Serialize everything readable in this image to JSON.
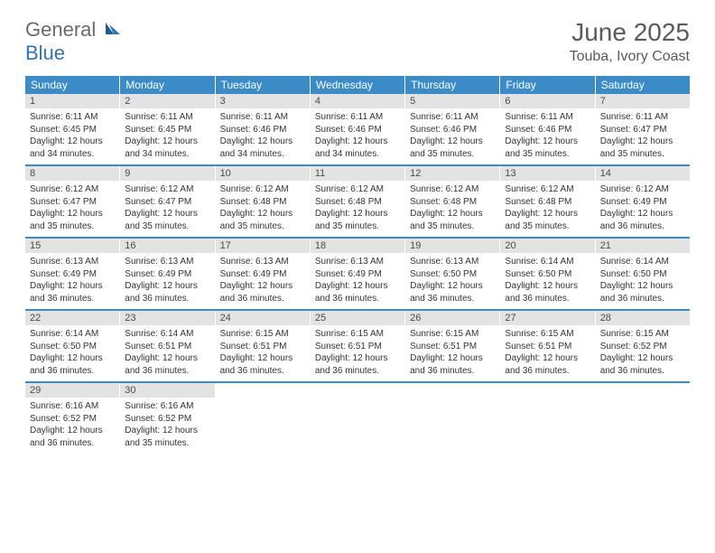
{
  "logo": {
    "general": "General",
    "blue": "Blue"
  },
  "title": "June 2025",
  "location": "Touba, Ivory Coast",
  "day_names": [
    "Sunday",
    "Monday",
    "Tuesday",
    "Wednesday",
    "Thursday",
    "Friday",
    "Saturday"
  ],
  "colors": {
    "header_bg": "#3b8bc9",
    "header_text": "#ffffff",
    "daynum_bg": "#e3e3e3",
    "logo_gray": "#6a6a6a",
    "logo_blue": "#2e75b6",
    "border": "#3b8bc9"
  },
  "weeks": [
    [
      {
        "n": "1",
        "sr": "Sunrise: 6:11 AM",
        "ss": "Sunset: 6:45 PM",
        "d1": "Daylight: 12 hours",
        "d2": "and 34 minutes."
      },
      {
        "n": "2",
        "sr": "Sunrise: 6:11 AM",
        "ss": "Sunset: 6:45 PM",
        "d1": "Daylight: 12 hours",
        "d2": "and 34 minutes."
      },
      {
        "n": "3",
        "sr": "Sunrise: 6:11 AM",
        "ss": "Sunset: 6:46 PM",
        "d1": "Daylight: 12 hours",
        "d2": "and 34 minutes."
      },
      {
        "n": "4",
        "sr": "Sunrise: 6:11 AM",
        "ss": "Sunset: 6:46 PM",
        "d1": "Daylight: 12 hours",
        "d2": "and 34 minutes."
      },
      {
        "n": "5",
        "sr": "Sunrise: 6:11 AM",
        "ss": "Sunset: 6:46 PM",
        "d1": "Daylight: 12 hours",
        "d2": "and 35 minutes."
      },
      {
        "n": "6",
        "sr": "Sunrise: 6:11 AM",
        "ss": "Sunset: 6:46 PM",
        "d1": "Daylight: 12 hours",
        "d2": "and 35 minutes."
      },
      {
        "n": "7",
        "sr": "Sunrise: 6:11 AM",
        "ss": "Sunset: 6:47 PM",
        "d1": "Daylight: 12 hours",
        "d2": "and 35 minutes."
      }
    ],
    [
      {
        "n": "8",
        "sr": "Sunrise: 6:12 AM",
        "ss": "Sunset: 6:47 PM",
        "d1": "Daylight: 12 hours",
        "d2": "and 35 minutes."
      },
      {
        "n": "9",
        "sr": "Sunrise: 6:12 AM",
        "ss": "Sunset: 6:47 PM",
        "d1": "Daylight: 12 hours",
        "d2": "and 35 minutes."
      },
      {
        "n": "10",
        "sr": "Sunrise: 6:12 AM",
        "ss": "Sunset: 6:48 PM",
        "d1": "Daylight: 12 hours",
        "d2": "and 35 minutes."
      },
      {
        "n": "11",
        "sr": "Sunrise: 6:12 AM",
        "ss": "Sunset: 6:48 PM",
        "d1": "Daylight: 12 hours",
        "d2": "and 35 minutes."
      },
      {
        "n": "12",
        "sr": "Sunrise: 6:12 AM",
        "ss": "Sunset: 6:48 PM",
        "d1": "Daylight: 12 hours",
        "d2": "and 35 minutes."
      },
      {
        "n": "13",
        "sr": "Sunrise: 6:12 AM",
        "ss": "Sunset: 6:48 PM",
        "d1": "Daylight: 12 hours",
        "d2": "and 35 minutes."
      },
      {
        "n": "14",
        "sr": "Sunrise: 6:12 AM",
        "ss": "Sunset: 6:49 PM",
        "d1": "Daylight: 12 hours",
        "d2": "and 36 minutes."
      }
    ],
    [
      {
        "n": "15",
        "sr": "Sunrise: 6:13 AM",
        "ss": "Sunset: 6:49 PM",
        "d1": "Daylight: 12 hours",
        "d2": "and 36 minutes."
      },
      {
        "n": "16",
        "sr": "Sunrise: 6:13 AM",
        "ss": "Sunset: 6:49 PM",
        "d1": "Daylight: 12 hours",
        "d2": "and 36 minutes."
      },
      {
        "n": "17",
        "sr": "Sunrise: 6:13 AM",
        "ss": "Sunset: 6:49 PM",
        "d1": "Daylight: 12 hours",
        "d2": "and 36 minutes."
      },
      {
        "n": "18",
        "sr": "Sunrise: 6:13 AM",
        "ss": "Sunset: 6:49 PM",
        "d1": "Daylight: 12 hours",
        "d2": "and 36 minutes."
      },
      {
        "n": "19",
        "sr": "Sunrise: 6:13 AM",
        "ss": "Sunset: 6:50 PM",
        "d1": "Daylight: 12 hours",
        "d2": "and 36 minutes."
      },
      {
        "n": "20",
        "sr": "Sunrise: 6:14 AM",
        "ss": "Sunset: 6:50 PM",
        "d1": "Daylight: 12 hours",
        "d2": "and 36 minutes."
      },
      {
        "n": "21",
        "sr": "Sunrise: 6:14 AM",
        "ss": "Sunset: 6:50 PM",
        "d1": "Daylight: 12 hours",
        "d2": "and 36 minutes."
      }
    ],
    [
      {
        "n": "22",
        "sr": "Sunrise: 6:14 AM",
        "ss": "Sunset: 6:50 PM",
        "d1": "Daylight: 12 hours",
        "d2": "and 36 minutes."
      },
      {
        "n": "23",
        "sr": "Sunrise: 6:14 AM",
        "ss": "Sunset: 6:51 PM",
        "d1": "Daylight: 12 hours",
        "d2": "and 36 minutes."
      },
      {
        "n": "24",
        "sr": "Sunrise: 6:15 AM",
        "ss": "Sunset: 6:51 PM",
        "d1": "Daylight: 12 hours",
        "d2": "and 36 minutes."
      },
      {
        "n": "25",
        "sr": "Sunrise: 6:15 AM",
        "ss": "Sunset: 6:51 PM",
        "d1": "Daylight: 12 hours",
        "d2": "and 36 minutes."
      },
      {
        "n": "26",
        "sr": "Sunrise: 6:15 AM",
        "ss": "Sunset: 6:51 PM",
        "d1": "Daylight: 12 hours",
        "d2": "and 36 minutes."
      },
      {
        "n": "27",
        "sr": "Sunrise: 6:15 AM",
        "ss": "Sunset: 6:51 PM",
        "d1": "Daylight: 12 hours",
        "d2": "and 36 minutes."
      },
      {
        "n": "28",
        "sr": "Sunrise: 6:15 AM",
        "ss": "Sunset: 6:52 PM",
        "d1": "Daylight: 12 hours",
        "d2": "and 36 minutes."
      }
    ],
    [
      {
        "n": "29",
        "sr": "Sunrise: 6:16 AM",
        "ss": "Sunset: 6:52 PM",
        "d1": "Daylight: 12 hours",
        "d2": "and 36 minutes."
      },
      {
        "n": "30",
        "sr": "Sunrise: 6:16 AM",
        "ss": "Sunset: 6:52 PM",
        "d1": "Daylight: 12 hours",
        "d2": "and 35 minutes."
      },
      null,
      null,
      null,
      null,
      null
    ]
  ]
}
